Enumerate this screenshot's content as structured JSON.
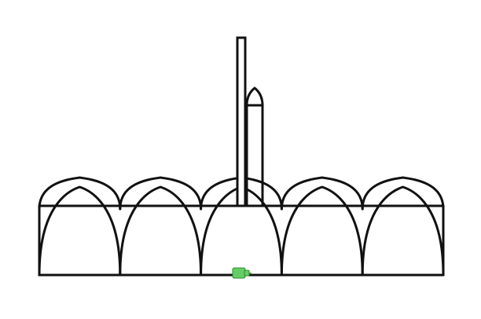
{
  "diagram": {
    "background_color": "#ffffff",
    "line_color": "#111111",
    "tower_fill": "#ffffff",
    "marker_fill": "#66cc66",
    "marker_stroke": "#2e8b2e",
    "arch_count": 5,
    "marker_icon": "green-block-icon"
  }
}
